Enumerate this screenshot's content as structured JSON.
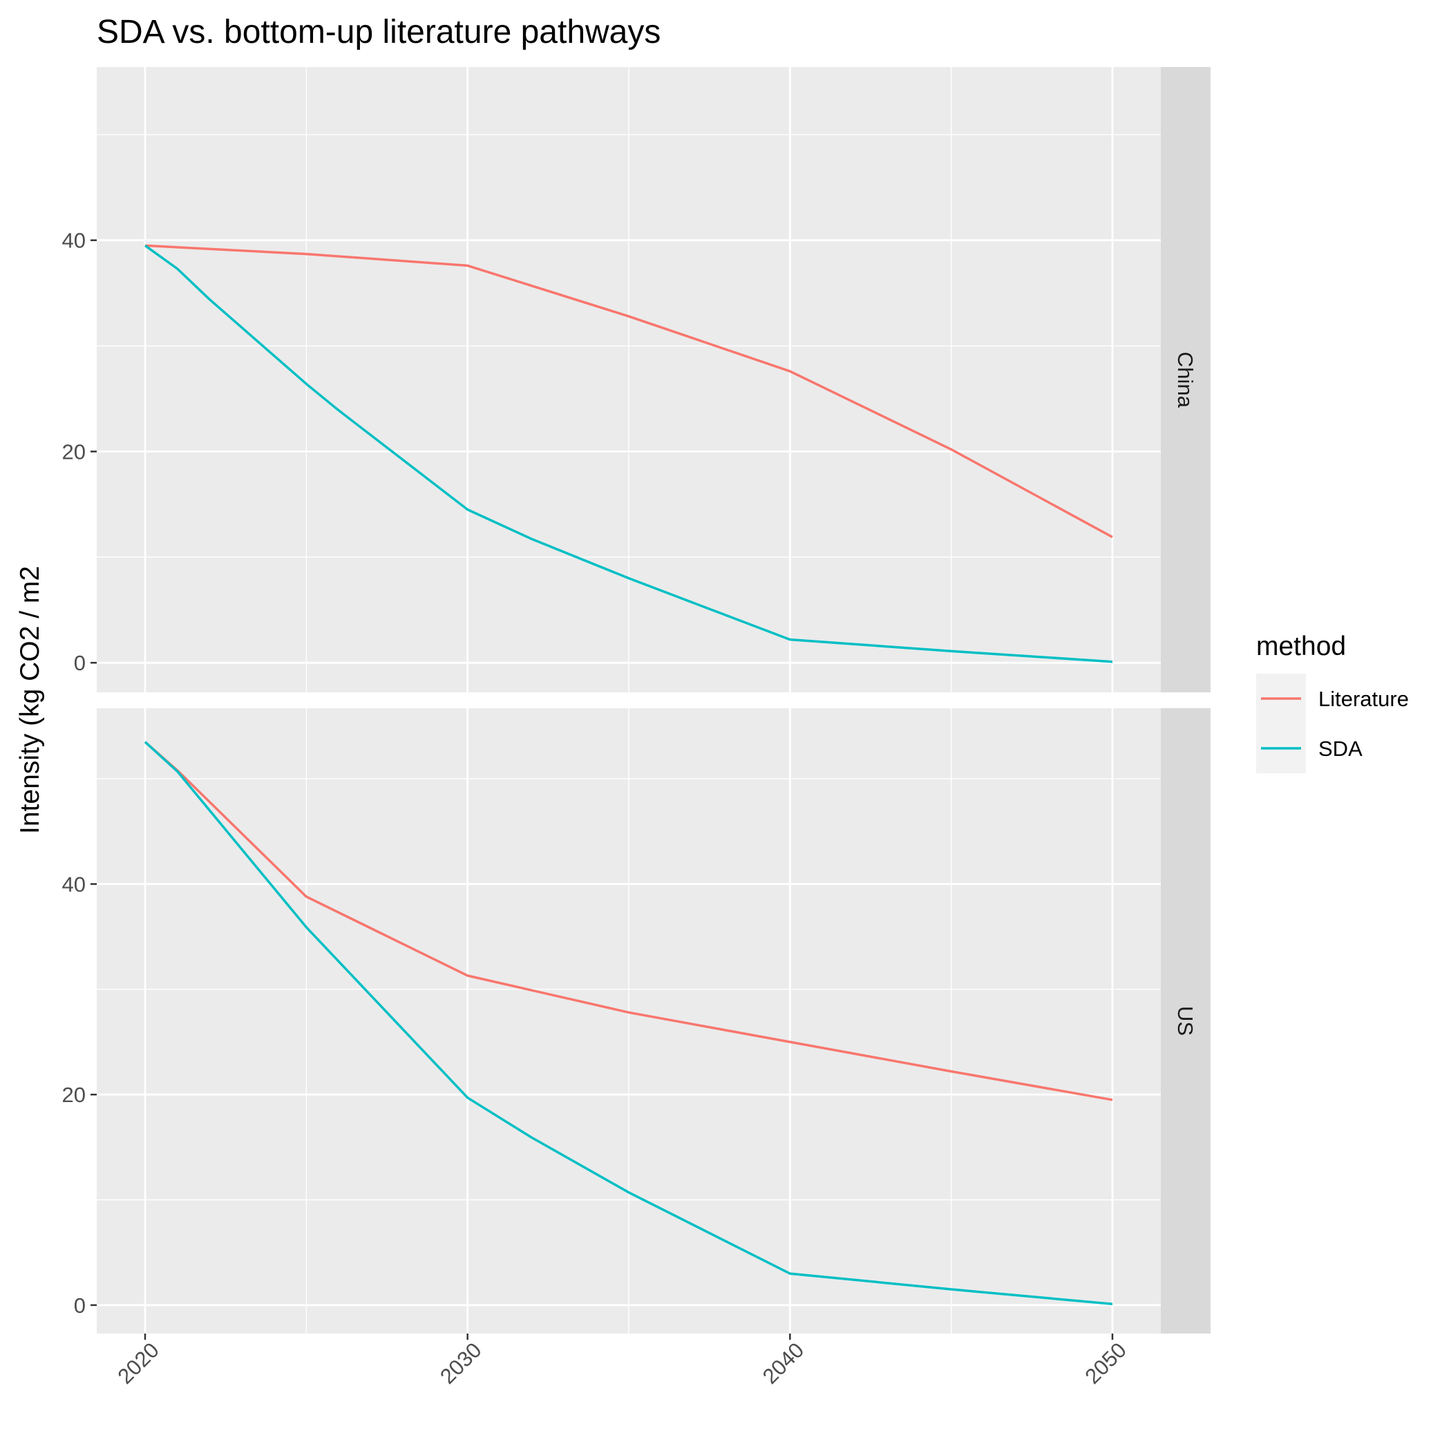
{
  "chart_data": {
    "type": "line",
    "title": "SDA vs. bottom-up literature pathways",
    "xlabel": "",
    "ylabel": "Intensity (kg CO2 / m2",
    "x_ticks": [
      2020,
      2030,
      2040,
      2050
    ],
    "xlim": [
      2018.5,
      2051.5
    ],
    "grid": true,
    "legend": {
      "title": "method",
      "placement": "right",
      "entries": [
        {
          "name": "Literature",
          "color": "#F8766D"
        },
        {
          "name": "SDA",
          "color": "#00BFC4"
        }
      ]
    },
    "facets": [
      {
        "label": "China",
        "ylim": [
          -2.8,
          56.4
        ],
        "y_ticks": [
          0,
          20,
          40
        ],
        "series": [
          {
            "name": "Literature",
            "color": "#F8766D",
            "x": [
              2020,
              2025,
              2030,
              2035,
              2040,
              2045,
              2050
            ],
            "y": [
              39.5,
              38.7,
              37.6,
              32.8,
              27.6,
              20.2,
              11.9
            ]
          },
          {
            "name": "SDA",
            "color": "#00BFC4",
            "x": [
              2020,
              2021,
              2022,
              2025,
              2026,
              2030,
              2032,
              2035,
              2040,
              2045,
              2050
            ],
            "y": [
              39.5,
              37.3,
              34.4,
              26.4,
              23.9,
              14.5,
              11.7,
              8.0,
              2.2,
              1.1,
              0.1
            ]
          }
        ]
      },
      {
        "label": "US",
        "ylim": [
          -2.7,
          56.7
        ],
        "y_ticks": [
          0,
          20,
          40
        ],
        "series": [
          {
            "name": "Literature",
            "color": "#F8766D",
            "x": [
              2020,
              2021,
              2025,
              2030,
              2035,
              2040,
              2045,
              2050
            ],
            "y": [
              53.5,
              50.8,
              38.8,
              31.3,
              27.8,
              25.0,
              22.2,
              19.5
            ]
          },
          {
            "name": "SDA",
            "color": "#00BFC4",
            "x": [
              2020,
              2021,
              2022,
              2025,
              2030,
              2032,
              2035,
              2040,
              2045,
              2050
            ],
            "y": [
              53.5,
              50.7,
              47.0,
              35.9,
              19.7,
              15.9,
              10.7,
              3.0,
              1.5,
              0.1
            ]
          }
        ]
      }
    ]
  }
}
